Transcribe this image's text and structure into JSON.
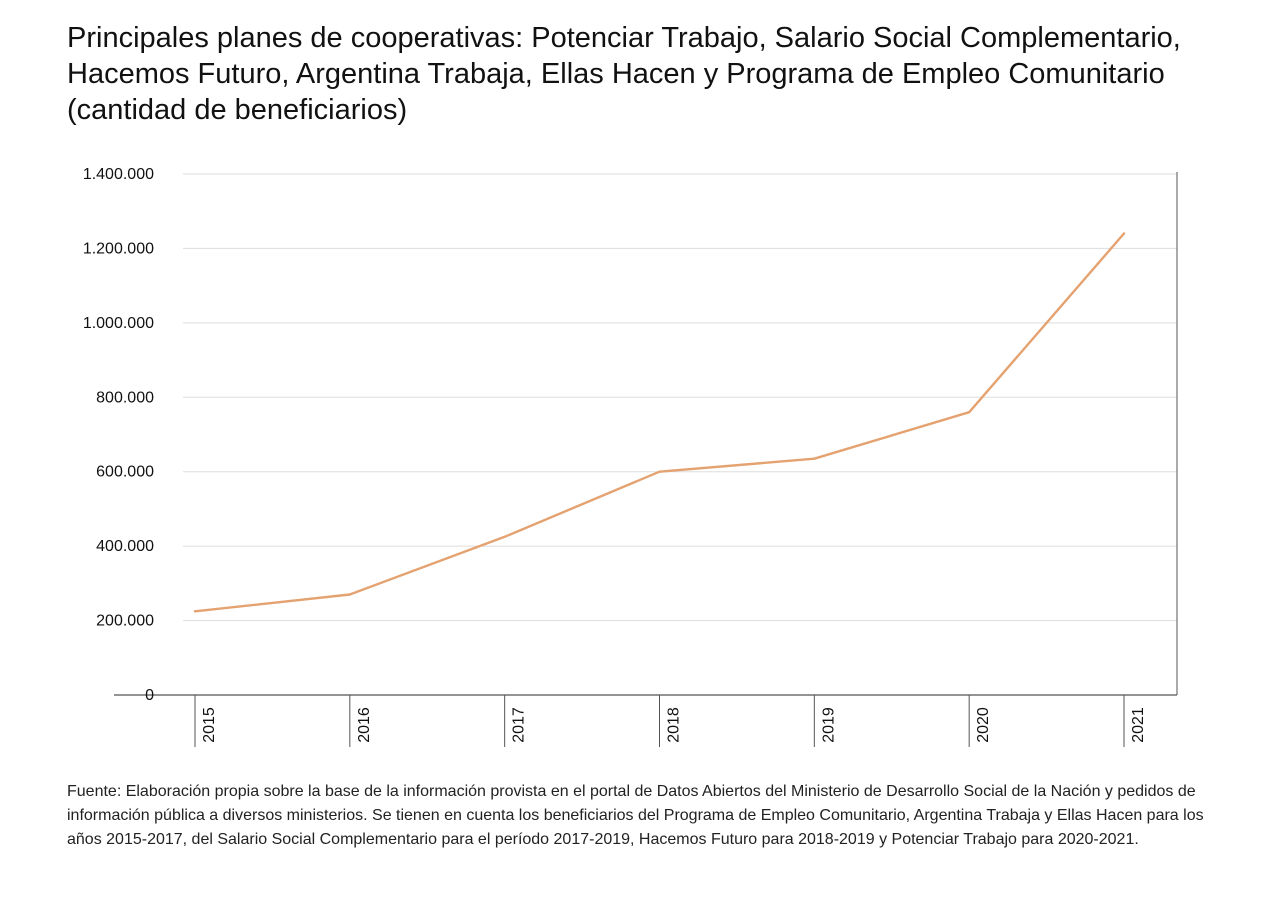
{
  "title": "Principales planes de cooperativas: Potenciar Trabajo, Salario Social Complementario, Hacemos Futuro, Argentina Trabaja, Ellas Hacen y Programa de Empleo Comunitario (cantidad de beneficiarios)",
  "source": "Fuente: Elaboración propia sobre la base de la información provista en el portal de Datos Abiertos del Ministerio de Desarrollo Social de la Nación y pedidos de información pública a diversos ministerios. Se tienen en cuenta los beneficiarios del Programa de Empleo Comunitario, Argentina Trabaja y Ellas Hacen para los años 2015-2017, del Salario Social Complementario para el período 2017-2019, Hacemos Futuro para 2018-2019 y Potenciar Trabajo para 2020-2021.",
  "chart_data": {
    "type": "line",
    "title": "Principales planes de cooperativas: Potenciar Trabajo, Salario Social Complementario, Hacemos Futuro, Argentina Trabaja, Ellas Hacen y Programa de Empleo Comunitario (cantidad de beneficiarios)",
    "xlabel": "",
    "ylabel": "",
    "categories": [
      "2015",
      "2016",
      "2017",
      "2018",
      "2019",
      "2020",
      "2021"
    ],
    "series": [
      {
        "values": [
          225000,
          270000,
          425000,
          600000,
          635000,
          760000,
          1240000
        ]
      }
    ],
    "ylim": [
      0,
      1400000
    ],
    "yticks": [
      0,
      200000,
      400000,
      600000,
      800000,
      1000000,
      1200000,
      1400000
    ],
    "ytick_labels": [
      "0",
      "200.000",
      "400.000",
      "600.000",
      "800.000",
      "1.000.000",
      "1.200.000",
      "1.400.000"
    ],
    "grid": true,
    "legend": "none",
    "colors": {
      "line": "#E5A271",
      "grid": "#dddddd",
      "axis": "#555555"
    }
  }
}
